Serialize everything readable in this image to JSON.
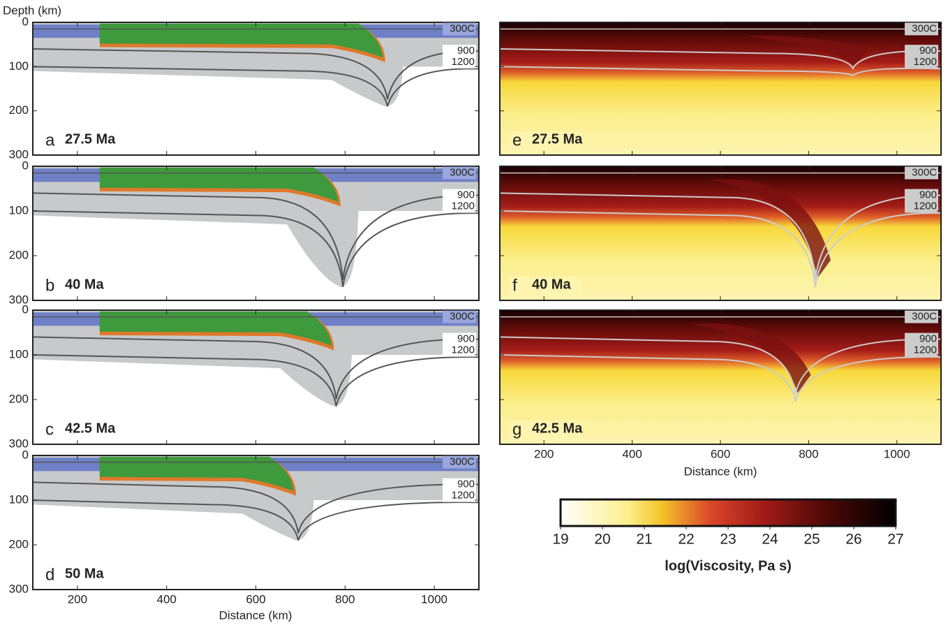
{
  "y_axis_label": "Depth (km)",
  "x_axis_label": "Distance (km)",
  "xlim": [
    100,
    1100
  ],
  "xticks": [
    200,
    400,
    600,
    800,
    1000
  ],
  "ylim": [
    0,
    300
  ],
  "yticks": [
    0,
    100,
    200,
    300
  ],
  "contours": [
    "300C",
    "900",
    "1200"
  ],
  "panels": [
    {
      "letter": "a",
      "age": "27.5 Ma"
    },
    {
      "letter": "b",
      "age": "40 Ma"
    },
    {
      "letter": "c",
      "age": "42.5 Ma"
    },
    {
      "letter": "d",
      "age": "50 Ma"
    },
    {
      "letter": "e",
      "age": "27.5 Ma"
    },
    {
      "letter": "f",
      "age": "40 Ma"
    },
    {
      "letter": "g",
      "age": "42.5 Ma"
    }
  ],
  "colorbar": {
    "title": "log(Viscosity, Pa s)",
    "lim": [
      19,
      27
    ],
    "ticks": [
      19,
      20,
      21,
      22,
      23,
      24,
      25,
      26,
      27
    ]
  }
}
